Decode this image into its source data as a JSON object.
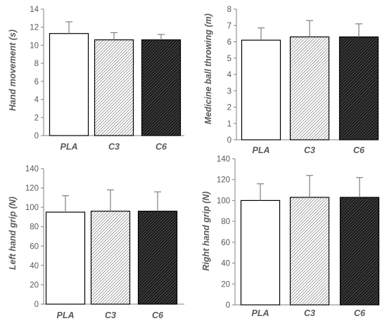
{
  "chart_data": [
    {
      "type": "bar",
      "panel": "top-left",
      "categories": [
        "PLA",
        "C3",
        "C6"
      ],
      "values": [
        11.3,
        10.6,
        10.6
      ],
      "errors": [
        1.3,
        0.8,
        0.6
      ],
      "ylabel": "Hand movement (s)",
      "ylim": [
        0,
        14
      ],
      "ystep": 2,
      "grid": false
    },
    {
      "type": "bar",
      "panel": "top-right",
      "categories": [
        "PLA",
        "C3",
        "C6"
      ],
      "values": [
        6.1,
        6.3,
        6.3
      ],
      "errors": [
        0.75,
        1.0,
        0.8
      ],
      "ylabel": "Medicine ball throwing (m)",
      "ylim": [
        0,
        8
      ],
      "ystep": 1,
      "grid": false
    },
    {
      "type": "bar",
      "panel": "bottom-left",
      "categories": [
        "PLA",
        "C3",
        "C6"
      ],
      "values": [
        95,
        96,
        96
      ],
      "errors": [
        17,
        22,
        20
      ],
      "ylabel": "Left hand grip (N)",
      "ylim": [
        0,
        140
      ],
      "ystep": 20,
      "grid": false
    },
    {
      "type": "bar",
      "panel": "bottom-right",
      "categories": [
        "PLA",
        "C3",
        "C6"
      ],
      "values": [
        100,
        103,
        103
      ],
      "errors": [
        16,
        21,
        19
      ],
      "ylabel": "Right hand grip (N)",
      "ylim": [
        0,
        140
      ],
      "ystep": 20,
      "grid": false
    }
  ],
  "colors": {
    "bar_fills": [
      "#ffffff",
      "hatch-light",
      "hatch-dark"
    ],
    "bar_stroke": "#000000",
    "axis": "#808080",
    "text": "#595959"
  }
}
